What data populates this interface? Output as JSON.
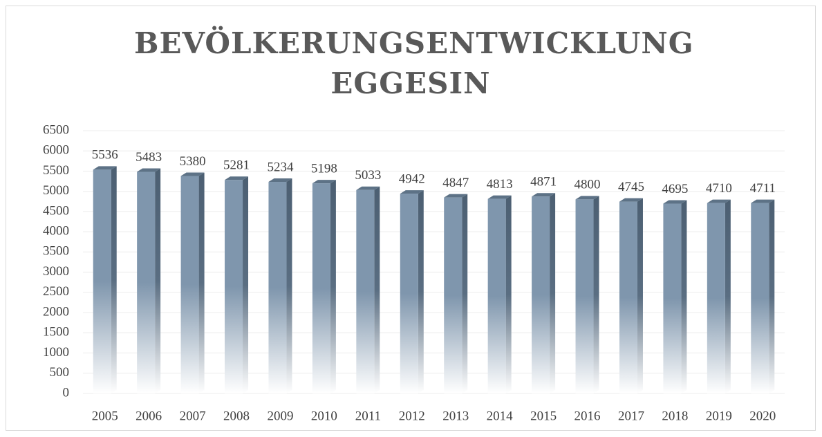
{
  "chart_data": {
    "type": "bar3d",
    "title": "BEVÖLKERUNGSENTWICKLUNG EGGESIN",
    "categories": [
      "2005",
      "2006",
      "2007",
      "2008",
      "2009",
      "2010",
      "2011",
      "2012",
      "2013",
      "2014",
      "2015",
      "2016",
      "2017",
      "2018",
      "2019",
      "2020"
    ],
    "values": [
      5536,
      5483,
      5380,
      5281,
      5234,
      5198,
      5033,
      4942,
      4847,
      4813,
      4871,
      4800,
      4745,
      4695,
      4710,
      4711
    ],
    "color": "#7f96ad",
    "ylim": [
      0,
      6500
    ],
    "yticks": [
      0,
      500,
      1000,
      1500,
      2000,
      2500,
      3000,
      3500,
      4000,
      4500,
      5000,
      5500,
      6000,
      6500
    ],
    "grid": true
  }
}
